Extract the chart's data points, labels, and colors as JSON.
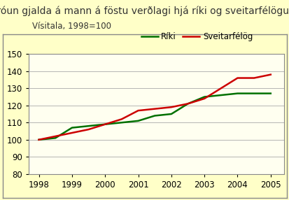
{
  "title": "Þróun gjalda á mann á föstu verðlagi hjá ríki og sveitarfélögum",
  "ylabel_note": "Vísitala, 1998=100",
  "years": [
    1998,
    1998.5,
    1999,
    1999.5,
    2000,
    2000.5,
    2001,
    2001.5,
    2002,
    2002.5,
    2003,
    2003.5,
    2004,
    2004.5,
    2005
  ],
  "riki": [
    100,
    101,
    107,
    108,
    109,
    110,
    111,
    114,
    115,
    121,
    125,
    126,
    127,
    127,
    127
  ],
  "sveitarfelag": [
    100,
    102,
    104,
    106,
    109,
    112,
    117,
    118,
    119,
    121,
    124,
    130,
    136,
    136,
    138
  ],
  "riki_color": "#007000",
  "sveit_color": "#cc0000",
  "bg_color": "#ffffc8",
  "plot_bg_color": "#fffff0",
  "grid_color": "#aaaaaa",
  "border_color": "#888888",
  "legend_riki": "Ríki",
  "legend_sveit": "Sveitarfélög",
  "ylim": [
    80,
    150
  ],
  "yticks": [
    80,
    90,
    100,
    110,
    120,
    130,
    140,
    150
  ],
  "xlim": [
    1997.7,
    2005.4
  ],
  "xticks": [
    1998,
    1999,
    2000,
    2001,
    2002,
    2003,
    2004,
    2005
  ],
  "line_width": 1.8,
  "title_fontsize": 10,
  "axis_fontsize": 8.5,
  "legend_fontsize": 8.5,
  "note_fontsize": 8.5
}
